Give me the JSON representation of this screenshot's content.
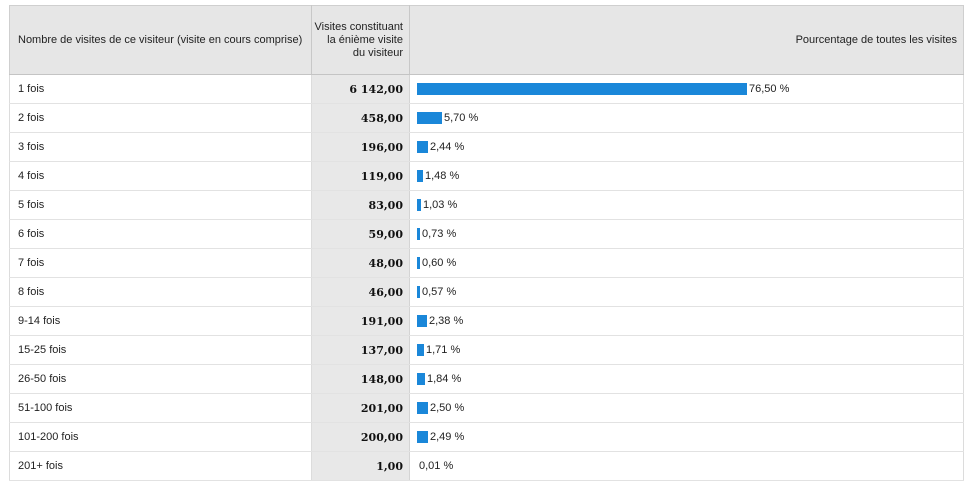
{
  "colors": {
    "bar": "#1a87d9",
    "header_bg": "#e6e6e6",
    "metric_col_bg": "#e8e8e8"
  },
  "table": {
    "headers": {
      "label": "Nombre de visites de ce visiteur (visite en cours comprise)",
      "visits": "Visites constituant la énième visite du visiteur",
      "pct": "Pourcentage de toutes les visites"
    },
    "rows": [
      {
        "label": "1 fois",
        "visits": "6 142,00",
        "pct": 76.5,
        "pct_text": "76,50 %"
      },
      {
        "label": "2 fois",
        "visits": "458,00",
        "pct": 5.7,
        "pct_text": "5,70 %"
      },
      {
        "label": "3 fois",
        "visits": "196,00",
        "pct": 2.44,
        "pct_text": "2,44 %"
      },
      {
        "label": "4 fois",
        "visits": "119,00",
        "pct": 1.48,
        "pct_text": "1,48 %"
      },
      {
        "label": "5 fois",
        "visits": "83,00",
        "pct": 1.03,
        "pct_text": "1,03 %"
      },
      {
        "label": "6 fois",
        "visits": "59,00",
        "pct": 0.73,
        "pct_text": "0,73 %"
      },
      {
        "label": "7 fois",
        "visits": "48,00",
        "pct": 0.6,
        "pct_text": "0,60 %"
      },
      {
        "label": "8 fois",
        "visits": "46,00",
        "pct": 0.57,
        "pct_text": "0,57 %"
      },
      {
        "label": "9-14 fois",
        "visits": "191,00",
        "pct": 2.38,
        "pct_text": "2,38 %"
      },
      {
        "label": "15-25 fois",
        "visits": "137,00",
        "pct": 1.71,
        "pct_text": "1,71 %"
      },
      {
        "label": "26-50 fois",
        "visits": "148,00",
        "pct": 1.84,
        "pct_text": "1,84 %"
      },
      {
        "label": "51-100 fois",
        "visits": "201,00",
        "pct": 2.5,
        "pct_text": "2,50 %"
      },
      {
        "label": "101-200 fois",
        "visits": "200,00",
        "pct": 2.49,
        "pct_text": "2,49 %"
      },
      {
        "label": "201+ fois",
        "visits": "1,00",
        "pct": 0.01,
        "pct_text": "0,01 %"
      }
    ]
  }
}
